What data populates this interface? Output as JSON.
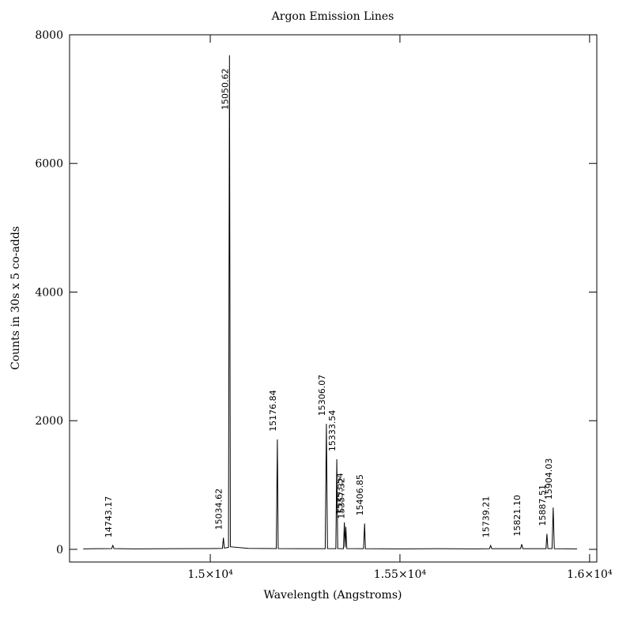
{
  "chart_data": {
    "type": "line",
    "title": "Argon Emission Lines",
    "x_label": "Wavelength (Angstroms)",
    "y_label": "Counts in 30s x 5 co-adds",
    "x": [
      14665,
      14700,
      14740,
      14743.17,
      14746,
      14800,
      14900,
      15000,
      15032,
      15034.62,
      15037,
      15048,
      15050.62,
      15053,
      15100,
      15174,
      15176.84,
      15179,
      15250,
      15303,
      15306.07,
      15309,
      15331,
      15333.54,
      15336,
      15351,
      15353.54,
      15355.5,
      15357.32,
      15360,
      15404,
      15406.85,
      15409,
      15500,
      15600,
      15700,
      15736,
      15739.21,
      15742,
      15818,
      15821.1,
      15824,
      15885,
      15887.51,
      15890,
      15901,
      15904.03,
      15907,
      15967
    ],
    "series": [
      {
        "color": "#000000",
        "values": [
          8,
          10,
          12,
          60,
          12,
          8,
          10,
          12,
          15,
          180,
          20,
          30,
          7680,
          40,
          15,
          12,
          1710,
          12,
          10,
          10,
          1950,
          12,
          10,
          1400,
          12,
          10,
          420,
          30,
          350,
          12,
          10,
          400,
          10,
          8,
          10,
          8,
          10,
          60,
          10,
          10,
          80,
          10,
          10,
          240,
          12,
          12,
          650,
          10,
          8
        ]
      }
    ],
    "annotations": [
      "14743.17",
      "15034.62",
      "15050.62",
      "15176.84",
      "15306.07",
      "15333.54",
      "15353.54",
      "15357.32",
      "15406.85",
      "15739.21",
      "15821.10",
      "15887.51",
      "15904.03"
    ],
    "xlim": [
      14629,
      16019
    ],
    "ylim": [
      -197,
      8000
    ],
    "xticks": [
      {
        "value": 15000,
        "label": "1.5×10⁴"
      },
      {
        "value": 15500,
        "label": "1.55×10⁴"
      },
      {
        "value": 16000,
        "label": "1.6×10⁴"
      }
    ],
    "yticks": [
      0,
      2000,
      4000,
      6000,
      8000
    ]
  }
}
